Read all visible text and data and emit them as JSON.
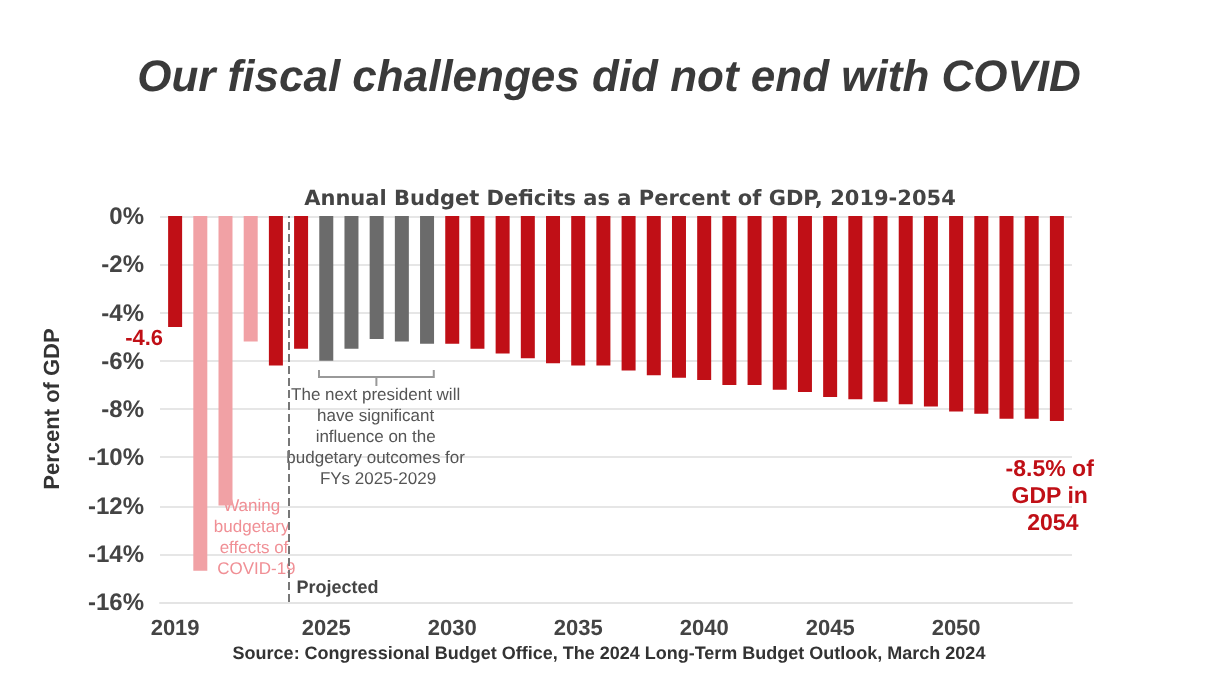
{
  "chart_data": {
    "type": "bar",
    "title": "Our fiscal challenges did not end with COVID",
    "subtitle": "Annual Budget Deficits as a Percent of GDP, 2019-2054",
    "ylabel": "Percent of GDP",
    "x": [
      2019,
      2020,
      2021,
      2022,
      2023,
      2024,
      2025,
      2026,
      2027,
      2028,
      2029,
      2030,
      2031,
      2032,
      2033,
      2034,
      2035,
      2036,
      2037,
      2038,
      2039,
      2040,
      2041,
      2042,
      2043,
      2044,
      2045,
      2046,
      2047,
      2048,
      2049,
      2050,
      2051,
      2052,
      2053,
      2054
    ],
    "values": [
      -4.6,
      -14.7,
      -12.0,
      -5.2,
      -6.2,
      -5.5,
      -6.0,
      -5.5,
      -5.1,
      -5.2,
      -5.3,
      -5.3,
      -5.5,
      -5.7,
      -5.9,
      -6.1,
      -6.2,
      -6.2,
      -6.4,
      -6.6,
      -6.7,
      -6.8,
      -7.0,
      -7.0,
      -7.2,
      -7.3,
      -7.5,
      -7.6,
      -7.7,
      -7.8,
      -7.9,
      -8.1,
      -8.2,
      -8.4,
      -8.4,
      -8.5
    ],
    "colors": [
      "#c00f16",
      "#f1a1a5",
      "#f1a1a5",
      "#f1a1a5",
      "#c00f16",
      "#c00f16",
      "#6b6b6b",
      "#6b6b6b",
      "#6b6b6b",
      "#6b6b6b",
      "#6b6b6b",
      "#c00f16",
      "#c00f16",
      "#c00f16",
      "#c00f16",
      "#c00f16",
      "#c00f16",
      "#c00f16",
      "#c00f16",
      "#c00f16",
      "#c00f16",
      "#c00f16",
      "#c00f16",
      "#c00f16",
      "#c00f16",
      "#c00f16",
      "#c00f16",
      "#c00f16",
      "#c00f16",
      "#c00f16",
      "#c00f16",
      "#c00f16",
      "#c00f16",
      "#c00f16",
      "#c00f16",
      "#c00f16"
    ],
    "xlim": [
      2018.4,
      2054.6
    ],
    "xticks": [
      2019,
      2025,
      2030,
      2035,
      2040,
      2045,
      2050
    ],
    "ylim": [
      -16,
      0
    ],
    "yticks": [
      {
        "value": -16,
        "label": "-16%"
      },
      {
        "value": -14,
        "label": "-14%"
      },
      {
        "value": -12,
        "label": "-12%"
      },
      {
        "value": -10,
        "label": "-10%"
      },
      {
        "value": -8,
        "label": "-8%"
      },
      {
        "value": -6,
        "label": "-6%"
      },
      {
        "value": -4,
        "label": "-4%"
      },
      {
        "value": -2,
        "label": "-2%"
      },
      {
        "value": 0,
        "label": "0%"
      }
    ],
    "grid": "y",
    "ref_lines": [
      {
        "axis": "x",
        "value": 2023.5,
        "label": "Projected",
        "line_style": "dashed",
        "color": "#777777"
      }
    ],
    "annotations": [
      {
        "text": "-4.6",
        "x": 2019,
        "y": -4.6
      },
      "Waning budgetary effects of COVID-19",
      "The next president will have significant influence on the budgetary outcomes for FYs 2025-2029",
      {
        "text": "-8.5% of GDP in 2054",
        "x": 2054,
        "y": -8.5
      },
      "Source: Congressional Budget Office, The 2024 Long-Term Budget Outlook, March 2024"
    ]
  }
}
